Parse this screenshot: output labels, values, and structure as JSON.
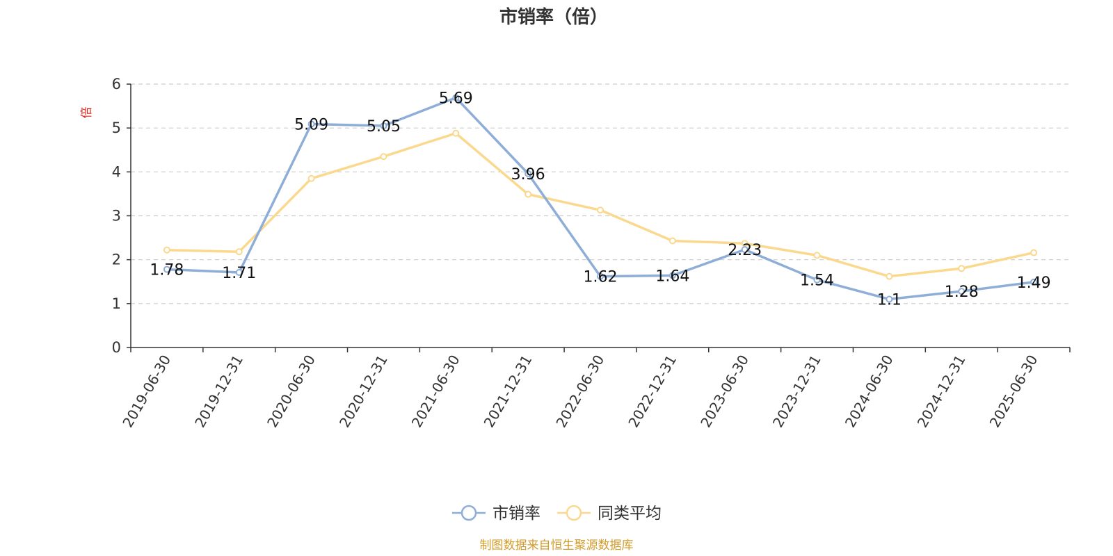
{
  "chart_data": {
    "type": "line",
    "title": "市销率（倍）",
    "ylabel": "倍",
    "ylim": [
      0,
      6
    ],
    "yticks": [
      0,
      1,
      2,
      3,
      4,
      5,
      6
    ],
    "grid": true,
    "legend_position": "bottom",
    "categories": [
      "2019-06-30",
      "2019-12-31",
      "2020-06-30",
      "2020-12-31",
      "2021-06-30",
      "2021-12-31",
      "2022-06-30",
      "2022-12-31",
      "2023-06-30",
      "2023-12-31",
      "2024-06-30",
      "2024-12-31",
      "2025-06-30"
    ],
    "series": [
      {
        "name": "市销率",
        "color": "#8eaed8",
        "values": [
          1.78,
          1.71,
          5.09,
          5.05,
          5.69,
          3.96,
          1.62,
          1.64,
          2.23,
          1.54,
          1.1,
          1.28,
          1.49
        ],
        "labels": [
          "1.78",
          "1.71",
          "5.09",
          "5.05",
          "5.69",
          "3.96",
          "1.62",
          "1.64",
          "2.23",
          "1.54",
          "1.1",
          "1.28",
          "1.49"
        ]
      },
      {
        "name": "同类平均",
        "color": "#fad98f",
        "values": [
          2.22,
          2.18,
          3.85,
          4.35,
          4.88,
          3.49,
          3.13,
          2.43,
          2.37,
          2.1,
          1.62,
          1.8,
          2.16
        ]
      }
    ]
  },
  "footer": {
    "source": "制图数据来自恒生聚源数据库"
  },
  "colors": {
    "axis": "#333333",
    "grid": "#cccccc",
    "unit": "#e0241b",
    "source": "#d29c2a"
  }
}
